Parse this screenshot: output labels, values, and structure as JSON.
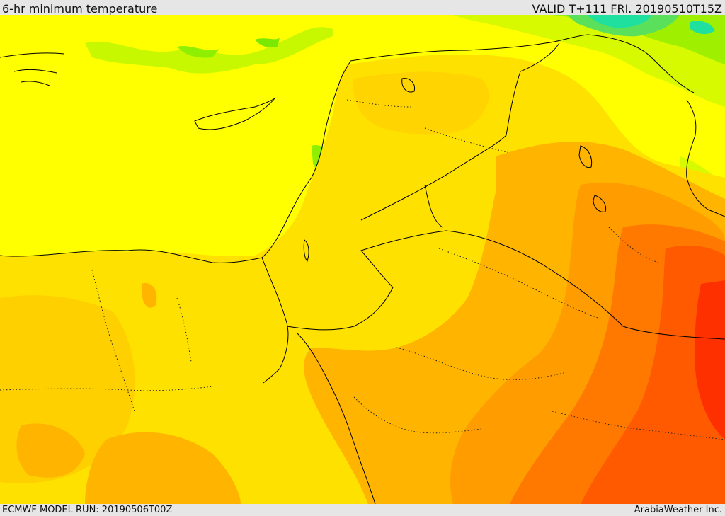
{
  "header": {
    "title": "6-hr minimum temperature",
    "valid": "VALID T+111 FRI. 20190510T15Z"
  },
  "footer": {
    "model_run": "ECMWF MODEL RUN: 20190506T00Z",
    "credit": "ArabiaWeather Inc."
  },
  "colors": {
    "sea": "#ffff00",
    "cool_green": "#a8f000",
    "cold_green": "#5ae05a",
    "cold_cyan": "#20e0a0",
    "warm_yellow": "#ffdc00",
    "warm_orange": "#ffb400",
    "hot_orange": "#ff8c00",
    "hotter": "#ff5a00",
    "hottest": "#ff3000",
    "border": "#000000"
  }
}
